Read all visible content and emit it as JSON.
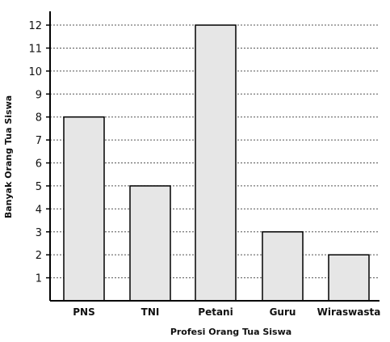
{
  "chart_data": {
    "type": "bar",
    "title": "",
    "xlabel": "Profesi Orang Tua Siswa",
    "ylabel": "Banyak Orang Tua Siswa",
    "categories": [
      "PNS",
      "TNI",
      "Petani",
      "Guru",
      "Wiraswasta"
    ],
    "values": [
      8,
      5,
      12,
      3,
      2
    ],
    "ylim": [
      0,
      12.6
    ],
    "yticks": [
      "1",
      "2",
      "3",
      "4",
      "5",
      "6",
      "7",
      "8",
      "9",
      "10",
      "11",
      "12"
    ],
    "grid": true,
    "bar_color": "#e6e6e6",
    "edge_color": "#000000"
  }
}
